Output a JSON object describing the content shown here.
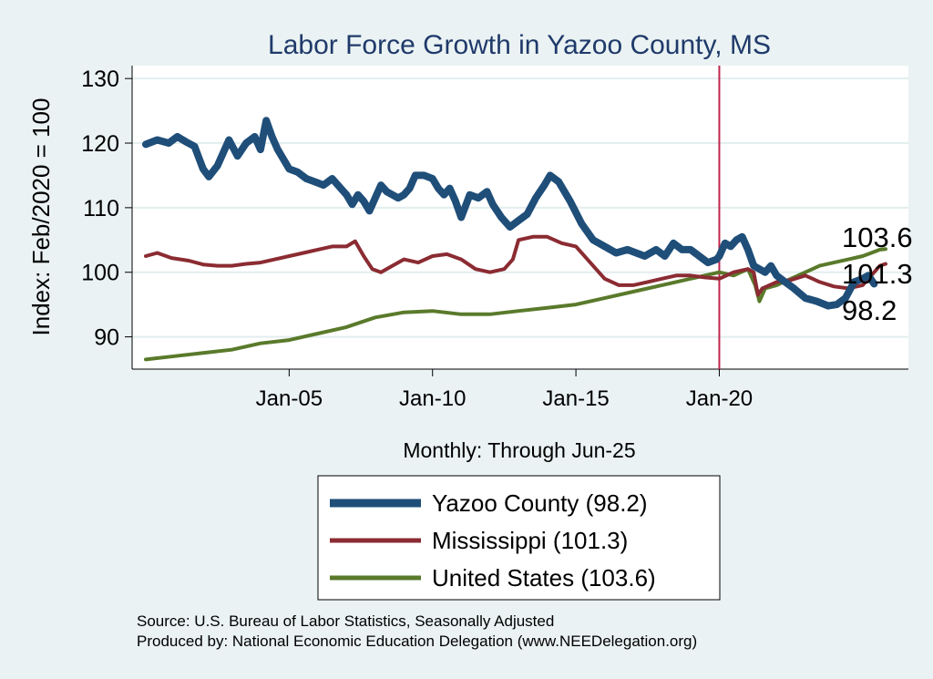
{
  "chart_data": {
    "type": "line",
    "title": "Labor Force Growth in Yazoo  County, MS",
    "ylabel": "Index: Feb/2020 = 100",
    "xlabel": "Monthly: Through Jun-25",
    "ylim": [
      85,
      132
    ],
    "yticks": [
      90,
      100,
      110,
      120,
      130
    ],
    "xlim": [
      2000.0,
      2025.8
    ],
    "xticks": [
      {
        "label": "Jan-05",
        "value": 2005.0
      },
      {
        "label": "Jan-10",
        "value": 2010.0
      },
      {
        "label": "Jan-15",
        "value": 2015.0
      },
      {
        "label": "Jan-20",
        "value": 2020.0
      }
    ],
    "reference_line": {
      "x": 2020.0,
      "color": "#c0244c"
    },
    "grid": true,
    "legend_position": "bottom",
    "end_labels": [
      "103.6",
      "101.3",
      "98.2"
    ],
    "series": [
      {
        "name": "Yazoo  County (98.2)",
        "color": "#1f4e79",
        "width": 8,
        "points": [
          [
            2000.0,
            119.8
          ],
          [
            2000.4,
            120.5
          ],
          [
            2000.8,
            120.0
          ],
          [
            2001.1,
            121.0
          ],
          [
            2001.4,
            120.2
          ],
          [
            2001.7,
            119.5
          ],
          [
            2002.0,
            116.0
          ],
          [
            2002.2,
            114.8
          ],
          [
            2002.5,
            116.5
          ],
          [
            2002.9,
            120.5
          ],
          [
            2003.2,
            118.0
          ],
          [
            2003.5,
            120.0
          ],
          [
            2003.8,
            121.0
          ],
          [
            2004.0,
            119.0
          ],
          [
            2004.2,
            123.5
          ],
          [
            2004.4,
            121.0
          ],
          [
            2004.6,
            119.0
          ],
          [
            2004.8,
            117.5
          ],
          [
            2005.0,
            116.0
          ],
          [
            2005.3,
            115.5
          ],
          [
            2005.6,
            114.5
          ],
          [
            2005.9,
            114.0
          ],
          [
            2006.2,
            113.5
          ],
          [
            2006.5,
            114.5
          ],
          [
            2006.8,
            113.0
          ],
          [
            2007.0,
            112.0
          ],
          [
            2007.2,
            110.5
          ],
          [
            2007.4,
            112.0
          ],
          [
            2007.6,
            111.0
          ],
          [
            2007.8,
            109.5
          ],
          [
            2008.0,
            111.5
          ],
          [
            2008.2,
            113.5
          ],
          [
            2008.4,
            112.5
          ],
          [
            2008.6,
            112.0
          ],
          [
            2008.8,
            111.5
          ],
          [
            2009.0,
            112.0
          ],
          [
            2009.2,
            113.0
          ],
          [
            2009.4,
            115.0
          ],
          [
            2009.7,
            115.0
          ],
          [
            2010.0,
            114.5
          ],
          [
            2010.2,
            113.0
          ],
          [
            2010.4,
            112.0
          ],
          [
            2010.6,
            113.0
          ],
          [
            2010.8,
            111.0
          ],
          [
            2011.0,
            108.5
          ],
          [
            2011.3,
            112.0
          ],
          [
            2011.6,
            111.5
          ],
          [
            2011.9,
            112.5
          ],
          [
            2012.1,
            110.5
          ],
          [
            2012.4,
            108.5
          ],
          [
            2012.7,
            107.0
          ],
          [
            2013.0,
            108.0
          ],
          [
            2013.3,
            109.0
          ],
          [
            2013.6,
            111.5
          ],
          [
            2013.9,
            113.5
          ],
          [
            2014.1,
            115.0
          ],
          [
            2014.4,
            114.0
          ],
          [
            2014.8,
            111.0
          ],
          [
            2015.2,
            107.5
          ],
          [
            2015.6,
            105.0
          ],
          [
            2016.0,
            104.0
          ],
          [
            2016.4,
            103.0
          ],
          [
            2016.8,
            103.5
          ],
          [
            2017.1,
            103.0
          ],
          [
            2017.4,
            102.5
          ],
          [
            2017.8,
            103.5
          ],
          [
            2018.1,
            102.5
          ],
          [
            2018.4,
            104.5
          ],
          [
            2018.7,
            103.5
          ],
          [
            2019.0,
            103.5
          ],
          [
            2019.3,
            102.5
          ],
          [
            2019.6,
            101.5
          ],
          [
            2019.9,
            102.0
          ],
          [
            2020.0,
            102.5
          ],
          [
            2020.2,
            104.5
          ],
          [
            2020.4,
            104.0
          ],
          [
            2020.6,
            105.0
          ],
          [
            2020.8,
            105.5
          ],
          [
            2021.0,
            103.5
          ],
          [
            2021.2,
            101.0
          ],
          [
            2021.4,
            100.5
          ],
          [
            2021.6,
            100.0
          ],
          [
            2021.8,
            101.0
          ],
          [
            2022.0,
            99.5
          ],
          [
            2022.3,
            98.5
          ],
          [
            2022.6,
            97.5
          ],
          [
            2023.0,
            96.0
          ],
          [
            2023.4,
            95.5
          ],
          [
            2023.8,
            94.8
          ],
          [
            2024.1,
            95.0
          ],
          [
            2024.4,
            96.0
          ],
          [
            2024.7,
            98.5
          ],
          [
            2025.0,
            99.0
          ],
          [
            2025.2,
            99.5
          ],
          [
            2025.4,
            98.2
          ]
        ]
      },
      {
        "name": "Mississippi (101.3)",
        "color": "#8b2b32",
        "width": 4,
        "points": [
          [
            2000.0,
            102.5
          ],
          [
            2000.4,
            103.0
          ],
          [
            2000.9,
            102.2
          ],
          [
            2001.5,
            101.8
          ],
          [
            2002.0,
            101.2
          ],
          [
            2002.5,
            101.0
          ],
          [
            2003.0,
            101.0
          ],
          [
            2003.5,
            101.3
          ],
          [
            2004.0,
            101.5
          ],
          [
            2004.5,
            102.0
          ],
          [
            2005.0,
            102.5
          ],
          [
            2005.5,
            103.0
          ],
          [
            2006.0,
            103.5
          ],
          [
            2006.5,
            104.0
          ],
          [
            2007.0,
            104.0
          ],
          [
            2007.3,
            104.8
          ],
          [
            2007.6,
            102.5
          ],
          [
            2007.9,
            100.5
          ],
          [
            2008.2,
            100.0
          ],
          [
            2008.6,
            101.0
          ],
          [
            2009.0,
            102.0
          ],
          [
            2009.5,
            101.5
          ],
          [
            2010.0,
            102.5
          ],
          [
            2010.5,
            102.8
          ],
          [
            2011.0,
            102.0
          ],
          [
            2011.5,
            100.5
          ],
          [
            2012.0,
            100.0
          ],
          [
            2012.5,
            100.5
          ],
          [
            2012.8,
            102.0
          ],
          [
            2013.0,
            105.0
          ],
          [
            2013.5,
            105.5
          ],
          [
            2014.0,
            105.5
          ],
          [
            2014.5,
            104.5
          ],
          [
            2015.0,
            104.0
          ],
          [
            2015.5,
            101.5
          ],
          [
            2016.0,
            99.0
          ],
          [
            2016.5,
            98.0
          ],
          [
            2017.0,
            98.0
          ],
          [
            2017.5,
            98.5
          ],
          [
            2018.0,
            99.0
          ],
          [
            2018.5,
            99.5
          ],
          [
            2019.0,
            99.5
          ],
          [
            2019.5,
            99.2
          ],
          [
            2020.0,
            99.0
          ],
          [
            2020.5,
            100.0
          ],
          [
            2021.0,
            100.5
          ],
          [
            2021.2,
            100.0
          ],
          [
            2021.35,
            96.5
          ],
          [
            2021.5,
            97.5
          ],
          [
            2022.0,
            98.5
          ],
          [
            2022.5,
            98.8
          ],
          [
            2023.0,
            99.5
          ],
          [
            2023.5,
            98.5
          ],
          [
            2024.0,
            97.8
          ],
          [
            2024.5,
            97.5
          ],
          [
            2025.0,
            98.0
          ],
          [
            2025.4,
            100.0
          ],
          [
            2025.6,
            101.0
          ],
          [
            2025.8,
            101.3
          ]
        ]
      },
      {
        "name": "United States (103.6)",
        "color": "#5a7a2b",
        "width": 4,
        "points": [
          [
            2000.0,
            86.5
          ],
          [
            2001.0,
            87.0
          ],
          [
            2002.0,
            87.5
          ],
          [
            2003.0,
            88.0
          ],
          [
            2004.0,
            89.0
          ],
          [
            2005.0,
            89.5
          ],
          [
            2006.0,
            90.5
          ],
          [
            2007.0,
            91.5
          ],
          [
            2008.0,
            93.0
          ],
          [
            2009.0,
            93.8
          ],
          [
            2010.0,
            94.0
          ],
          [
            2011.0,
            93.5
          ],
          [
            2012.0,
            93.5
          ],
          [
            2013.0,
            94.0
          ],
          [
            2014.0,
            94.5
          ],
          [
            2015.0,
            95.0
          ],
          [
            2016.0,
            96.0
          ],
          [
            2017.0,
            97.0
          ],
          [
            2018.0,
            98.0
          ],
          [
            2019.0,
            99.0
          ],
          [
            2020.0,
            100.0
          ],
          [
            2020.5,
            99.5
          ],
          [
            2021.0,
            100.5
          ],
          [
            2021.25,
            98.0
          ],
          [
            2021.4,
            95.5
          ],
          [
            2021.6,
            97.5
          ],
          [
            2022.0,
            98.0
          ],
          [
            2022.5,
            99.0
          ],
          [
            2023.0,
            100.0
          ],
          [
            2023.5,
            101.0
          ],
          [
            2024.0,
            101.5
          ],
          [
            2024.5,
            102.0
          ],
          [
            2025.0,
            102.5
          ],
          [
            2025.3,
            103.0
          ],
          [
            2025.6,
            103.5
          ],
          [
            2025.8,
            103.6
          ]
        ]
      }
    ],
    "source_lines": [
      "Source: U.S. Bureau of Labor Statistics, Seasonally Adjusted",
      "Produced by: National Economic Education Delegation (www.NEEDelegation.org)"
    ]
  }
}
